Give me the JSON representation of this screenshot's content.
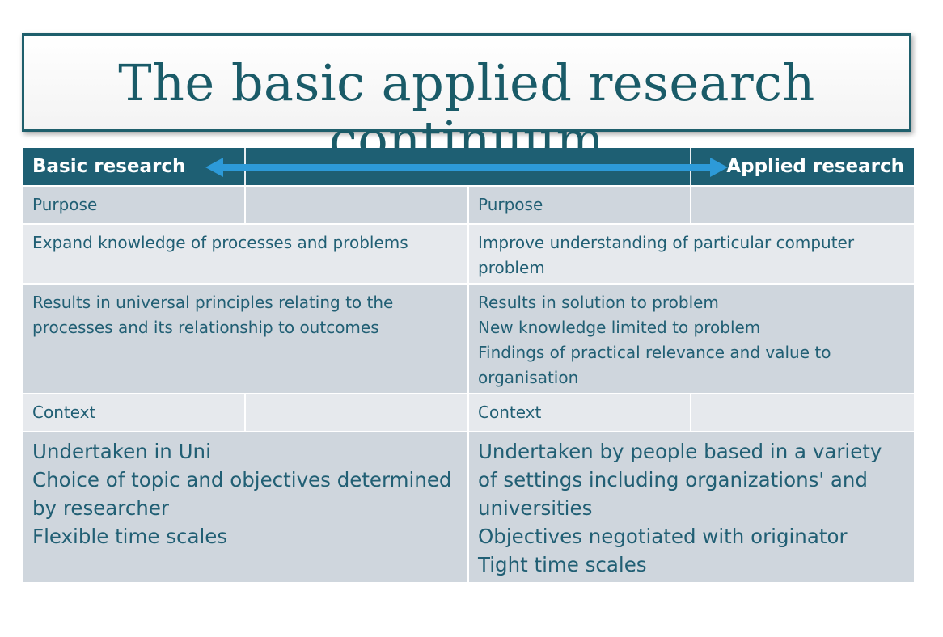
{
  "slide": {
    "title": "The basic applied research continuum"
  },
  "header": {
    "left_label": "Basic research",
    "right_label": "Applied research",
    "arrow_color": "#2d9ad8",
    "bar_color": "#1e5f73"
  },
  "rows": [
    {
      "basic": "Purpose",
      "applied": "Purpose"
    },
    {
      "basic": "Expand knowledge of processes  and problems",
      "applied": "Improve understanding of particular computer problem"
    },
    {
      "basic": "Results in universal principles relating to the processes and its relationship to outcomes",
      "applied": "Results in solution to problem\nNew knowledge limited to problem\nFindings of practical relevance and value to organisation"
    },
    {
      "basic": "Context",
      "applied": "Context"
    },
    {
      "basic": "Undertaken in Uni\nChoice of topic and objectives determined by researcher\nFlexible time scales",
      "applied": "Undertaken by people based in a variety of settings including organizations' and universities\nObjectives negotiated with originator\nTight time scales"
    }
  ],
  "colors": {
    "title_text": "#1a5b68",
    "cell_text": "#215f74",
    "row_light": "#e6e9ed",
    "row_dark": "#cfd6dd"
  }
}
